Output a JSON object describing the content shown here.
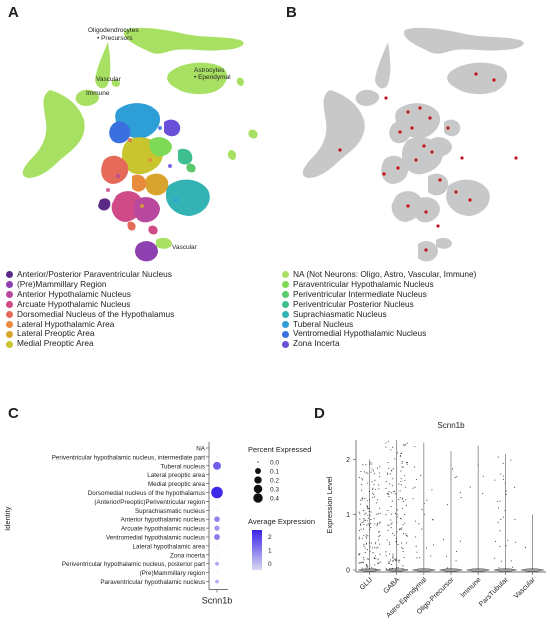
{
  "panels": {
    "a": "A",
    "b": "B",
    "c": "C",
    "d": "D"
  },
  "umap_labels": {
    "oligo_line1": "Oligodendrocytes",
    "oligo_line2": "• Precursors",
    "astro_line1": "Astrocytes",
    "astro_line2": "• Ependymal",
    "vascular_top": "Vascular",
    "immune": "Immune",
    "vascular_bottom": "Vascular"
  },
  "legend": {
    "left": [
      {
        "label": "Anterior/Posterior Paraventricular Nucleus",
        "color": "#5b2a86"
      },
      {
        "label": "(Pre)Mammillary Region",
        "color": "#8e3fb0"
      },
      {
        "label": "Anterior Hypothalamic Nucleus",
        "color": "#b8479e"
      },
      {
        "label": "Arcuate Hypothalamic Nucleus",
        "color": "#cf4a86"
      },
      {
        "label": "Dorsomedial Nucleus of the Hypothalamus",
        "color": "#e56a5a"
      },
      {
        "label": "Lateral Hypothalamic Area",
        "color": "#e88b3c"
      },
      {
        "label": "Lateral Preoptic Area",
        "color": "#d9a42d"
      },
      {
        "label": "Medial Preoptic Area",
        "color": "#c8c52e"
      }
    ],
    "right": [
      {
        "label": "NA (Not Neurons: Oligo, Astro, Vascular, Immune)",
        "color": "#a8e063"
      },
      {
        "label": "Paraventricular Hypothalamic Nucleus",
        "color": "#7ed957"
      },
      {
        "label": "Periventricular Intermediate Nucleus",
        "color": "#5cc96a"
      },
      {
        "label": "Periventricular Posterior Nucleus",
        "color": "#3fbf8f"
      },
      {
        "label": "Suprachiasmatic Nucleus",
        "color": "#33b3b3"
      },
      {
        "label": "Tuberal Nucleus",
        "color": "#2e9fd6"
      },
      {
        "label": "Ventromedial Hypothalamic Nucleus",
        "color": "#3a6fe0"
      },
      {
        "label": "Zona Incerta",
        "color": "#6a4fd8"
      }
    ]
  },
  "chart_data": [
    {
      "type": "scatter",
      "title": "",
      "xlabel": "Scnn1b",
      "ylabel": "Identity",
      "categories": [
        "NA",
        "Periventricular hypothalamic nucleus, intermediate part",
        "Tuberal nucleus",
        "Lateral preoptic area",
        "Medial preoptic area",
        "Dorsomedial nucleus of the hypothalamus",
        "(Anterior/Preoptic)Periventricular region",
        "Suprachiasmatic nucleus",
        "Anterior hypothalamic nucleus",
        "Arcuate hypothalamic nucleus",
        "Ventromedial hypothalamic nucleus",
        "Lateral hypothalamic area",
        "Zona incerta",
        "Periventricular hypothalamic nucleus, posterior part",
        "(Pre)Mammillary region",
        "Paraventricular hypothalamic nucleus"
      ],
      "percent_expressed": [
        0.0,
        0.0,
        0.15,
        0.0,
        0.0,
        0.42,
        0.0,
        0.0,
        0.05,
        0.04,
        0.06,
        0.0,
        0.0,
        0.01,
        0.0,
        0.01
      ],
      "average_expression": [
        -0.3,
        -0.4,
        1.5,
        -0.4,
        -0.4,
        2.4,
        -0.3,
        -0.3,
        0.9,
        0.6,
        1.0,
        -0.3,
        -0.3,
        0.3,
        -0.3,
        0.2
      ],
      "size_legend": {
        "title": "Percent Expressed",
        "values": [
          "0.0",
          "0.1",
          "0.2",
          "0.3",
          "0.4"
        ]
      },
      "color_legend": {
        "title": "Average Expression",
        "ticks": [
          "2",
          "1",
          "0"
        ],
        "range": [
          -0.5,
          2.5
        ],
        "low": "#d9d9f3",
        "high": "#3b22e8"
      }
    },
    {
      "type": "violin",
      "title": "Scnn1b",
      "xlabel": "",
      "ylabel": "Expression Level",
      "categories": [
        "GLU",
        "GABA",
        "Astro-Ependymal",
        "Oligo-Precursor",
        "Immune",
        "ParsTubular",
        "Vascular"
      ],
      "yticks": [
        "0",
        "1",
        "2"
      ],
      "ylim": [
        0,
        2.35
      ],
      "max_values": [
        2.0,
        2.35,
        2.3,
        2.15,
        2.25,
        2.1,
        1.0
      ],
      "point_density": [
        160,
        140,
        25,
        12,
        4,
        30,
        1
      ]
    }
  ]
}
